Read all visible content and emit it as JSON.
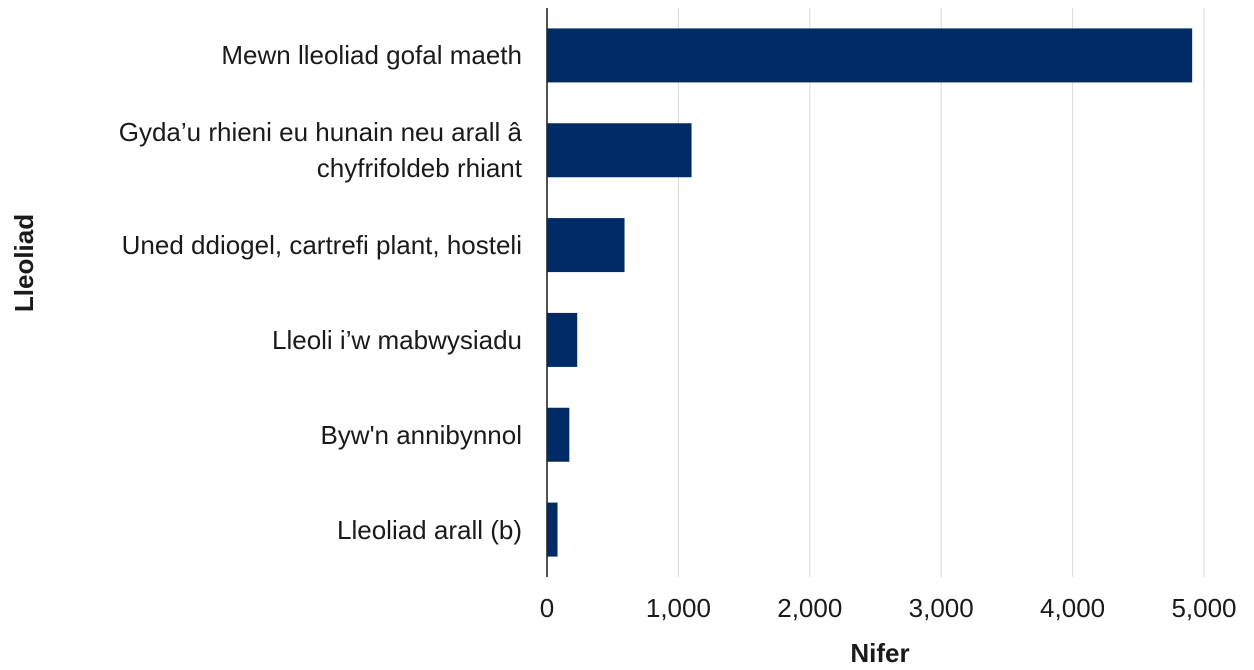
{
  "chart_data": {
    "type": "barh",
    "categories": [
      "Mewn lleoliad gofal maeth",
      "Gyda’u rhieni eu hunain neu arall â chyfrifoldeb rhiant",
      "Uned ddiogel, cartrefi plant, hosteli",
      "Lleoli i’w mabwysiadu",
      "Byw'n annibynnol",
      "Lleoliad arall (b)"
    ],
    "values": [
      4910,
      1100,
      590,
      230,
      170,
      80
    ],
    "color": "#002b66",
    "xlabel": "Nifer",
    "ylabel": "Lleoliad",
    "xlim": [
      0,
      5000
    ],
    "xticks": [
      0,
      {
        "value": 1000,
        "label": "1,000"
      },
      {
        "value": 2000,
        "label": "2,000"
      },
      {
        "value": 3000,
        "label": "3,000"
      },
      {
        "value": 4000,
        "label": "4,000"
      },
      {
        "value": 5000,
        "label": "5,000"
      }
    ],
    "grid": true
  }
}
